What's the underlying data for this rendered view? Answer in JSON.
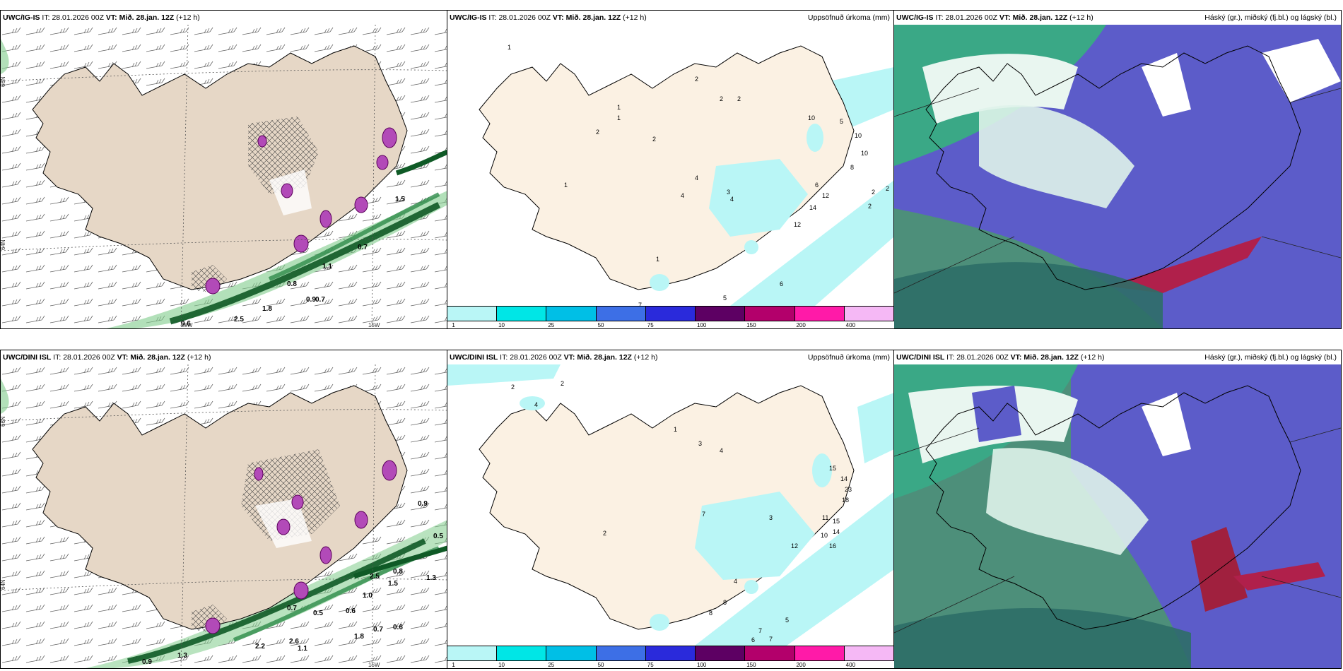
{
  "panels": [
    {
      "model": "UWC/IG-IS",
      "it_label": "IT:",
      "it_time": "28.01.2026 00Z",
      "vt_label": "VT:",
      "vt_time": "Mið. 28.jan. 12Z",
      "lead": "(+12 h)",
      "right_title": ""
    },
    {
      "model": "UWC/IG-IS",
      "it_label": "IT:",
      "it_time": "28.01.2026 00Z",
      "vt_label": "VT:",
      "vt_time": "Mið. 28.jan. 12Z",
      "lead": "(+12 h)",
      "right_title": "Uppsöfnuð úrkoma (mm)"
    },
    {
      "model": "UWC/IG-IS",
      "it_label": "IT:",
      "it_time": "28.01.2026 00Z",
      "vt_label": "VT:",
      "vt_time": "Mið. 28.jan. 12Z",
      "lead": "(+12 h)",
      "right_title": "Háský (gr.), miðský (fj.bl.) og lágský (bl.)"
    },
    {
      "model": "UWC/DINI ISL",
      "it_label": "IT:",
      "it_time": "28.01.2026 00Z",
      "vt_label": "VT:",
      "vt_time": "Mið. 28.jan. 12Z",
      "lead": "(+12 h)",
      "right_title": ""
    },
    {
      "model": "UWC/DINI ISL",
      "it_label": "IT:",
      "it_time": "28.01.2026 00Z",
      "vt_label": "VT:",
      "vt_time": "Mið. 28.jan. 12Z",
      "lead": "(+12 h)",
      "right_title": "Uppsöfnuð úrkoma (mm)"
    },
    {
      "model": "UWC/DINI ISL",
      "it_label": "IT:",
      "it_time": "28.01.2026 00Z",
      "vt_label": "VT:",
      "vt_time": "Mið. 28.jan. 12Z",
      "lead": "(+12 h)",
      "right_title": "Háský (gr.), miðský (fj.bl.) og lágský (bl.)"
    }
  ],
  "grid_labels": {
    "lat66": "66N",
    "lat64": "64N",
    "lat65": "65N",
    "lat63": "63N",
    "lon20": "20W",
    "lon15": "15W",
    "lon25": "25W"
  },
  "wind_values_top": [
    "0.6",
    "2.5",
    "1.8",
    "0.8",
    "1.1",
    "0.7",
    "1.5",
    "0.9",
    "0.7"
  ],
  "wind_values_bottom": [
    "0.9",
    "1.3",
    "2.2",
    "2.6",
    "1.1",
    "0.7",
    "0.5",
    "1.0",
    "0.6",
    "0.7",
    "1.8",
    "0.6",
    "0.8",
    "1.3",
    "0.5",
    "0.9",
    "2.5",
    "1.5"
  ],
  "precip_values_top": [
    "1",
    "1",
    "2",
    "2",
    "2",
    "2",
    "10",
    "5",
    "10",
    "10",
    "8",
    "6",
    "12",
    "14",
    "2",
    "2",
    "2",
    "1",
    "1",
    "4",
    "4",
    "3",
    "1",
    "2",
    "6",
    "5",
    "7",
    "4",
    "12"
  ],
  "precip_values_bottom": [
    "2",
    "2",
    "4",
    "1",
    "3",
    "4",
    "15",
    "14",
    "23",
    "18",
    "11",
    "15",
    "10",
    "14",
    "16",
    "12",
    "7",
    "3",
    "2",
    "8",
    "8",
    "5",
    "10",
    "6",
    "7",
    "7",
    "8",
    "4"
  ],
  "legend_ticks": [
    "1",
    "10",
    "25",
    "50",
    "75",
    "100",
    "150",
    "200",
    "400"
  ],
  "legend_colors": [
    "#b9f6f6",
    "#00e6e6",
    "#00bfe6",
    "#3d6fe6",
    "#2a2adb",
    "#5d0063",
    "#b3006b",
    "#ff1aa8",
    "#f5b8f5"
  ],
  "colors": {
    "land": "#e6d7c6",
    "landLight": "#fbf1e3",
    "sea": "#ffffff",
    "cloudLow": "#3c5fbf",
    "cloudMid": "#3a9a7a",
    "cloudHigh": "#bfe3d5"
  }
}
